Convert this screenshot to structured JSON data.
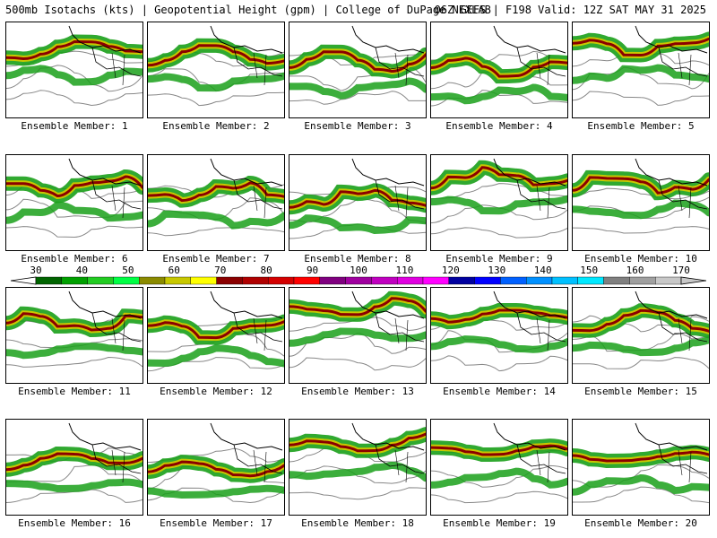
{
  "header": {
    "left_text": "500mb Isotachs (kts) | Geopotential Height (gpm) | College of DuPage NEXLAB",
    "right_text": "06Z GEFS | F198 Valid: 12Z SAT MAY 31 2025"
  },
  "members": [
    {
      "label": "Ensemble Member: 1"
    },
    {
      "label": "Ensemble Member: 2"
    },
    {
      "label": "Ensemble Member: 3"
    },
    {
      "label": "Ensemble Member: 4"
    },
    {
      "label": "Ensemble Member: 5"
    },
    {
      "label": "Ensemble Member: 6"
    },
    {
      "label": "Ensemble Member: 7"
    },
    {
      "label": "Ensemble Member: 8"
    },
    {
      "label": "Ensemble Member: 9"
    },
    {
      "label": "Ensemble Member: 10"
    },
    {
      "label": "Ensemble Member: 11"
    },
    {
      "label": "Ensemble Member: 12"
    },
    {
      "label": "Ensemble Member: 13"
    },
    {
      "label": "Ensemble Member: 14"
    },
    {
      "label": "Ensemble Member: 15"
    },
    {
      "label": "Ensemble Member: 16"
    },
    {
      "label": "Ensemble Member: 17"
    },
    {
      "label": "Ensemble Member: 18"
    },
    {
      "label": "Ensemble Member: 19"
    },
    {
      "label": "Ensemble Member: 20"
    }
  ],
  "colorbar": {
    "labels": [
      "30",
      "40",
      "50",
      "60",
      "70",
      "80",
      "90",
      "100",
      "110",
      "120",
      "130",
      "140",
      "150",
      "160",
      "170"
    ],
    "colors": [
      "#006400",
      "#00a000",
      "#22cc22",
      "#00ff44",
      "#8b8b00",
      "#c8c800",
      "#ffff00",
      "#8b0000",
      "#b00000",
      "#d40000",
      "#ff0000",
      "#800080",
      "#a000a0",
      "#c000c0",
      "#e000e0",
      "#ff00ff",
      "#0000a0",
      "#0000ff",
      "#0060ff",
      "#0090ff",
      "#00c0ff",
      "#00e8ff",
      "#808080",
      "#a0a0a0",
      "#c8c8c8"
    ]
  },
  "style": {
    "jet_fill": "#1aa01a",
    "jet_mid": "#c8c800",
    "jet_core": "#8b0000",
    "height_contour": "#888888",
    "borders": "#000000"
  }
}
